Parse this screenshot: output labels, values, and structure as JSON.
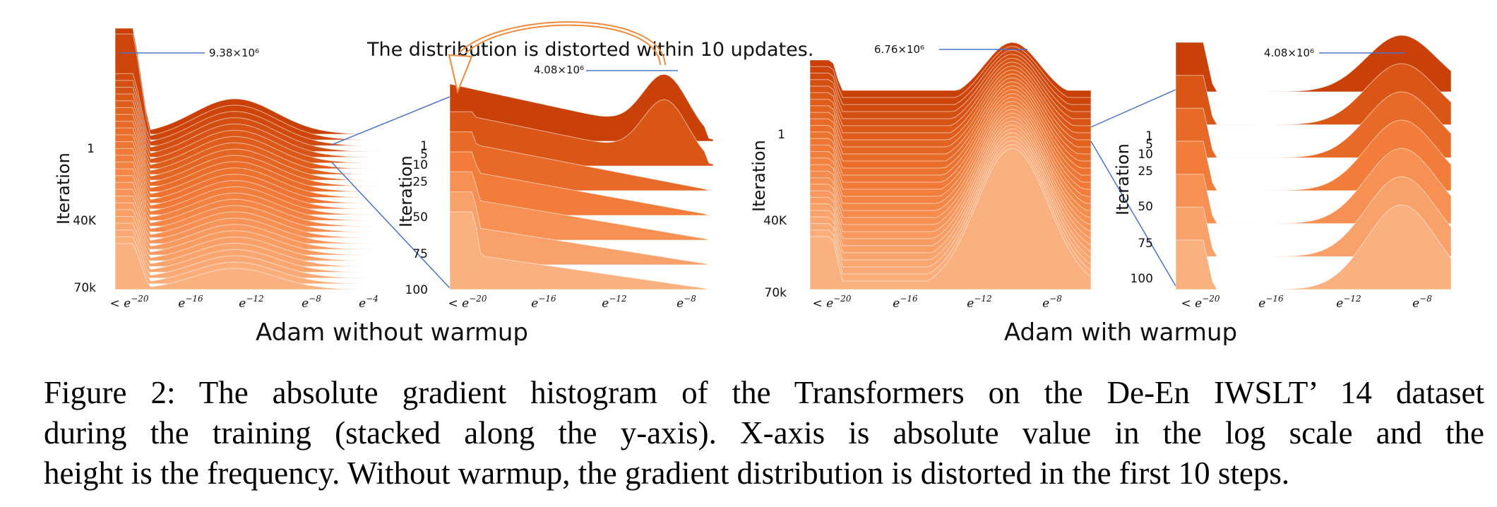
{
  "figure": {
    "annotation": "The distribution is distorted within 10 updates.",
    "panels": [
      {
        "title": "Adam without warmup",
        "left": {
          "ylabel": "Iteration",
          "yticks": [
            "1",
            "40K",
            "70k"
          ],
          "xticks": [
            "< e^-20",
            "e^-16",
            "e^-12",
            "e^-8",
            "e^-4"
          ],
          "peak_label": "9.38×10⁶"
        },
        "right": {
          "ylabel": "Iteration",
          "yticks": [
            "1",
            "5",
            "10",
            "25",
            "50",
            "75",
            "100"
          ],
          "xticks": [
            "< e^-20",
            "e^-16",
            "e^-12",
            "e^-8"
          ],
          "peak_label": "4.08×10⁶"
        }
      },
      {
        "title": "Adam with warmup",
        "left": {
          "ylabel": "Iteration",
          "yticks": [
            "1",
            "40K",
            "70k"
          ],
          "xticks": [
            "< e^-20",
            "e^-16",
            "e^-12",
            "e^-8"
          ],
          "peak_label": "6.76×10⁶"
        },
        "right": {
          "ylabel": "Iteration",
          "yticks": [
            "1",
            "5",
            "10",
            "25",
            "50",
            "75",
            "100"
          ],
          "xticks": [
            "< e^-20",
            "e^-16",
            "e^-12",
            "e^-8"
          ],
          "peak_label": "4.08×10⁶"
        }
      }
    ],
    "colors": {
      "darkest": "#c94008",
      "dark": "#e1611f",
      "mid": "#f27c3a",
      "light": "#f89a60",
      "lightest": "#fbb07f",
      "leader_line": "#4a73c9",
      "arrow": "#f08a3a"
    }
  },
  "caption": {
    "lines": [
      "Figure 2: The absolute gradient histogram of the Transformers on the De-En IWSLT’ 14 dataset",
      "during the training (stacked along the y-axis).  X-axis is absolute value in the log scale and the",
      "height is the frequency. Without warmup, the gradient distribution is distorted in the first 10 steps."
    ]
  }
}
